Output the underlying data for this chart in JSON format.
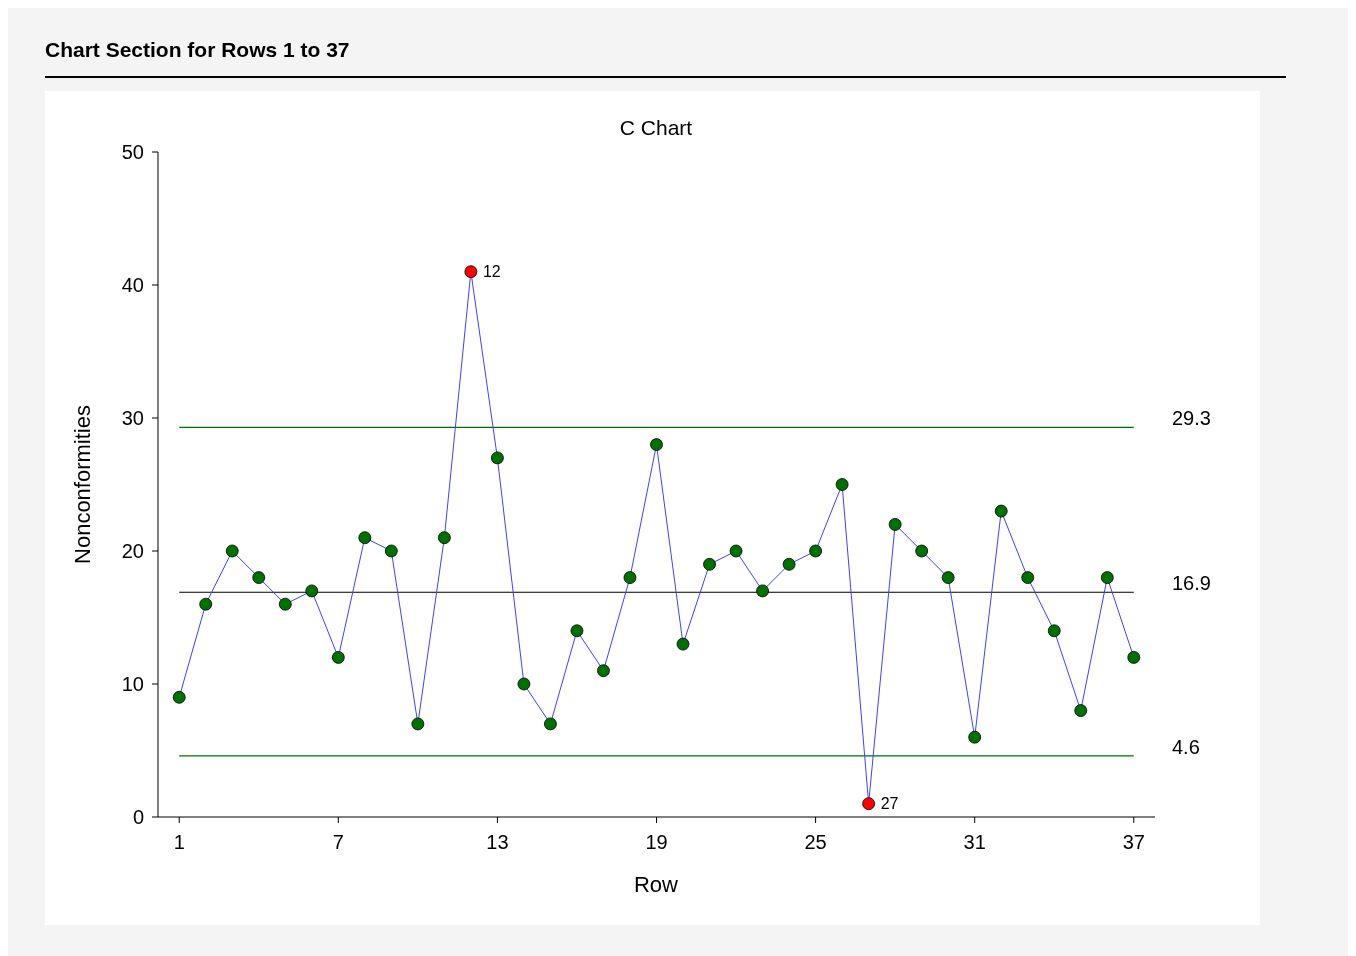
{
  "chart_data": {
    "type": "line",
    "title": "Chart Section for Rows 1 to 37",
    "subtitle": "C Chart",
    "xlabel": "Row",
    "ylabel": "Nonconformities",
    "x": [
      1,
      2,
      3,
      4,
      5,
      6,
      7,
      8,
      9,
      10,
      11,
      12,
      13,
      14,
      15,
      16,
      17,
      18,
      19,
      20,
      21,
      22,
      23,
      24,
      25,
      26,
      27,
      28,
      29,
      30,
      31,
      32,
      33,
      34,
      35,
      36,
      37
    ],
    "series": [
      {
        "color": "#4040ff",
        "values": [
          9,
          16,
          20,
          18,
          16,
          17,
          12,
          21,
          20,
          7,
          21,
          41,
          27,
          10,
          7,
          14,
          11,
          18,
          28,
          13,
          19,
          20,
          17,
          19,
          20,
          25,
          1,
          22,
          20,
          18,
          6,
          23,
          18,
          14,
          8,
          18,
          12
        ],
        "colors": [
          "#007000",
          "#007000",
          "#007000",
          "#007000",
          "#007000",
          "#007000",
          "#007000",
          "#007000",
          "#007000",
          "#007000",
          "#007000",
          "#ff0000",
          "#007000",
          "#007000",
          "#007000",
          "#007000",
          "#007000",
          "#007000",
          "#007000",
          "#007000",
          "#007000",
          "#007000",
          "#007000",
          "#007000",
          "#007000",
          "#007000",
          "#ff0000",
          "#007000",
          "#007000",
          "#007000",
          "#007000",
          "#007000",
          "#007000",
          "#007000",
          "#007000",
          "#007000",
          "#007000"
        ]
      }
    ],
    "xlim": [
      0.2,
      37.8
    ],
    "xticks": [
      1,
      7,
      13,
      19,
      25,
      31,
      37
    ],
    "ylim": [
      0,
      50
    ],
    "yticks": [
      0,
      10,
      20,
      30,
      40,
      50
    ],
    "marker": "circle",
    "line_style": "solid",
    "ref_lines": [
      {
        "axis": "y",
        "value": 29.3,
        "label": "29.3",
        "color": "#007000"
      },
      {
        "axis": "y",
        "value": 16.9,
        "label": "16.9",
        "color": "#000000"
      },
      {
        "axis": "y",
        "value": 4.6,
        "label": "4.6",
        "color": "#007000"
      }
    ],
    "annotations": [
      {
        "text": "12",
        "x": 12,
        "y": 41
      },
      {
        "text": "27",
        "x": 27,
        "y": 1
      }
    ]
  }
}
